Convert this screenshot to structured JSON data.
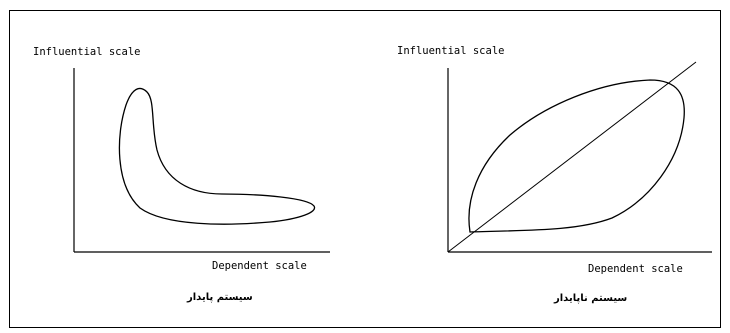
{
  "diagrams": [
    {
      "y_axis_label": "Influential scale",
      "x_axis_label": "Dependent scale",
      "caption": "سیستم پایدار"
    },
    {
      "y_axis_label": "Influential scale",
      "x_axis_label": "Dependent scale",
      "caption": "سیستم ناپایدار"
    }
  ],
  "colors": {
    "line": "#000000",
    "background": "#ffffff"
  }
}
